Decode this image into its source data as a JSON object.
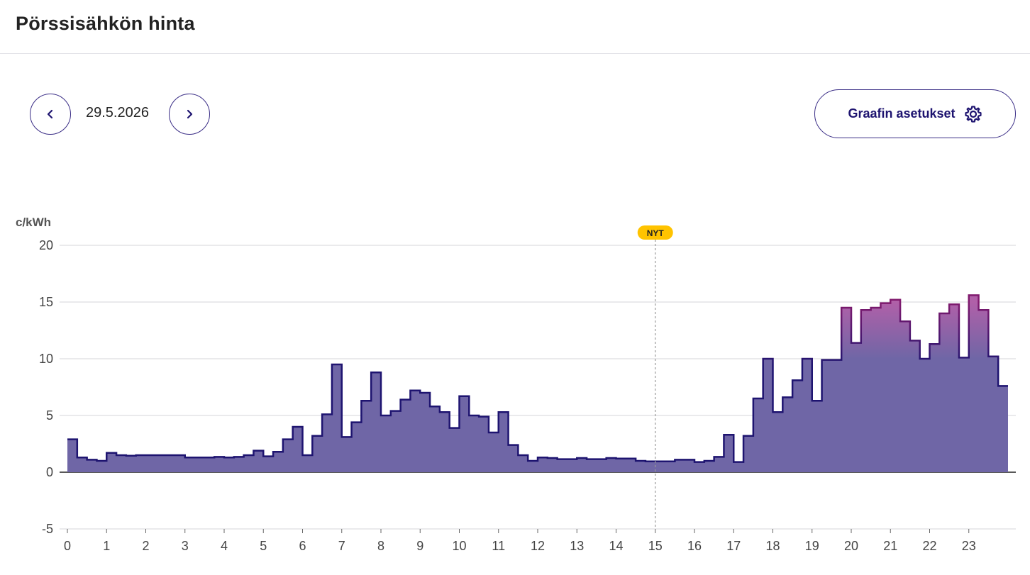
{
  "header": {
    "title": "Pörssisähkön hinta"
  },
  "date_nav": {
    "date": "29.5.2026",
    "prev_icon": "chevron-left-icon",
    "next_icon": "chevron-right-icon"
  },
  "settings": {
    "label": "Graafin asetukset",
    "icon": "gear-icon"
  },
  "colors": {
    "accent": "#1e1470",
    "fill_base": "#6f66a6",
    "fill_high": "#b060a8",
    "line_base": "#1e1470",
    "line_high": "#801a6e",
    "now_badge": "#ffc300"
  },
  "chart_data": {
    "type": "area",
    "unit_label": "c/kWh",
    "xlabel": "",
    "ylabel": "c/kWh",
    "step": "15min",
    "xlim": [
      0,
      24
    ],
    "ylim": [
      -5,
      20
    ],
    "y_ticks": [
      -5,
      0,
      5,
      10,
      15,
      20
    ],
    "x_ticks": [
      0,
      1,
      2,
      3,
      4,
      5,
      6,
      7,
      8,
      9,
      10,
      11,
      12,
      13,
      14,
      15,
      16,
      17,
      18,
      19,
      20,
      21,
      22,
      23
    ],
    "now_label": "NYT",
    "now_hour": 15,
    "grid": true,
    "values": [
      2.9,
      1.3,
      1.1,
      1.0,
      1.7,
      1.5,
      1.45,
      1.5,
      1.5,
      1.5,
      1.5,
      1.5,
      1.3,
      1.3,
      1.3,
      1.35,
      1.3,
      1.35,
      1.5,
      1.9,
      1.4,
      1.8,
      2.9,
      4.0,
      1.5,
      3.2,
      5.1,
      9.5,
      3.1,
      4.4,
      6.3,
      8.8,
      5.0,
      5.4,
      6.4,
      7.2,
      7.0,
      5.8,
      5.3,
      3.9,
      6.7,
      5.0,
      4.9,
      3.5,
      5.3,
      2.4,
      1.5,
      1.0,
      1.3,
      1.25,
      1.15,
      1.15,
      1.25,
      1.15,
      1.15,
      1.25,
      1.2,
      1.2,
      1.0,
      0.95,
      0.95,
      0.95,
      1.1,
      1.1,
      0.9,
      1.0,
      1.35,
      3.3,
      0.9,
      3.2,
      6.5,
      10.0,
      5.3,
      6.6,
      8.1,
      10.0,
      6.3,
      9.9,
      9.9,
      14.5,
      11.4,
      14.3,
      14.5,
      14.9,
      15.2,
      13.3,
      11.6,
      10.0,
      11.3,
      14.0,
      14.8,
      10.1,
      15.6,
      14.3,
      10.2,
      7.6
    ]
  }
}
